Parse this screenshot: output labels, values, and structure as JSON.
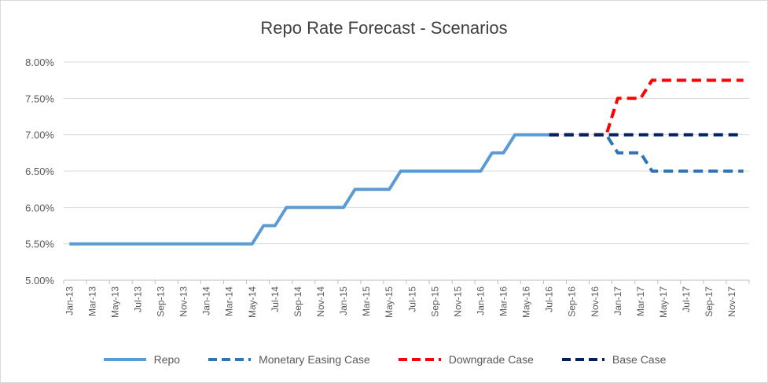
{
  "chart_data": {
    "type": "line",
    "title": "Repo Rate Forecast - Scenarios",
    "xlabel": "",
    "ylabel": "",
    "ylim": [
      0.05,
      0.08
    ],
    "y_ticks": [
      "5.00%",
      "5.50%",
      "6.00%",
      "6.50%",
      "7.00%",
      "7.50%",
      "8.00%"
    ],
    "grid": true,
    "legend_position": "bottom",
    "x_tick_labels": [
      "Jan-13",
      "Mar-13",
      "May-13",
      "Jul-13",
      "Sep-13",
      "Nov-13",
      "Jan-14",
      "Mar-14",
      "May-14",
      "Jul-14",
      "Sep-14",
      "Nov-14",
      "Jan-15",
      "Mar-15",
      "May-15",
      "Jul-15",
      "Sep-15",
      "Nov-15",
      "Jan-16",
      "Mar-16",
      "May-16",
      "Jul-16",
      "Sep-16",
      "Nov-16",
      "Jan-17",
      "Mar-17",
      "May-17",
      "Jul-17",
      "Sep-17",
      "Nov-17"
    ],
    "x": [
      "Jan-13",
      "Feb-13",
      "Mar-13",
      "Apr-13",
      "May-13",
      "Jun-13",
      "Jul-13",
      "Aug-13",
      "Sep-13",
      "Oct-13",
      "Nov-13",
      "Dec-13",
      "Jan-14",
      "Feb-14",
      "Mar-14",
      "Apr-14",
      "May-14",
      "Jun-14",
      "Jul-14",
      "Aug-14",
      "Sep-14",
      "Oct-14",
      "Nov-14",
      "Dec-14",
      "Jan-15",
      "Feb-15",
      "Mar-15",
      "Apr-15",
      "May-15",
      "Jun-15",
      "Jul-15",
      "Aug-15",
      "Sep-15",
      "Oct-15",
      "Nov-15",
      "Dec-15",
      "Jan-16",
      "Feb-16",
      "Mar-16",
      "Apr-16",
      "May-16",
      "Jun-16",
      "Jul-16",
      "Aug-16",
      "Sep-16",
      "Oct-16",
      "Nov-16",
      "Dec-16",
      "Jan-17",
      "Feb-17",
      "Mar-17",
      "Apr-17",
      "May-17",
      "Jun-17",
      "Jul-17",
      "Aug-17",
      "Sep-17",
      "Oct-17",
      "Nov-17",
      "Dec-17"
    ],
    "series": [
      {
        "name": "Repo",
        "color": "#5b9bd5",
        "dash": "solid",
        "values": [
          0.055,
          0.055,
          0.055,
          0.055,
          0.055,
          0.055,
          0.055,
          0.055,
          0.055,
          0.055,
          0.055,
          0.055,
          0.055,
          0.055,
          0.055,
          0.055,
          0.055,
          0.0575,
          0.0575,
          0.06,
          0.06,
          0.06,
          0.06,
          0.06,
          0.06,
          0.0625,
          0.0625,
          0.0625,
          0.0625,
          0.065,
          0.065,
          0.065,
          0.065,
          0.065,
          0.065,
          0.065,
          0.065,
          0.0675,
          0.0675,
          0.07,
          0.07,
          0.07,
          0.07,
          null,
          null,
          null,
          null,
          null,
          null,
          null,
          null,
          null,
          null,
          null,
          null,
          null,
          null,
          null,
          null,
          null
        ]
      },
      {
        "name": "Monetary Easing Case",
        "color": "#2e75b6",
        "dash": "dashed",
        "values": [
          null,
          null,
          null,
          null,
          null,
          null,
          null,
          null,
          null,
          null,
          null,
          null,
          null,
          null,
          null,
          null,
          null,
          null,
          null,
          null,
          null,
          null,
          null,
          null,
          null,
          null,
          null,
          null,
          null,
          null,
          null,
          null,
          null,
          null,
          null,
          null,
          null,
          null,
          null,
          null,
          null,
          null,
          0.07,
          0.07,
          0.07,
          0.07,
          0.07,
          0.07,
          0.0675,
          0.0675,
          0.0675,
          0.065,
          0.065,
          0.065,
          0.065,
          0.065,
          0.065,
          0.065,
          0.065,
          0.065
        ]
      },
      {
        "name": "Downgrade Case",
        "color": "#ff0000",
        "dash": "dashed",
        "values": [
          null,
          null,
          null,
          null,
          null,
          null,
          null,
          null,
          null,
          null,
          null,
          null,
          null,
          null,
          null,
          null,
          null,
          null,
          null,
          null,
          null,
          null,
          null,
          null,
          null,
          null,
          null,
          null,
          null,
          null,
          null,
          null,
          null,
          null,
          null,
          null,
          null,
          null,
          null,
          null,
          null,
          null,
          0.07,
          0.07,
          0.07,
          0.07,
          0.07,
          0.07,
          0.075,
          0.075,
          0.075,
          0.0775,
          0.0775,
          0.0775,
          0.0775,
          0.0775,
          0.0775,
          0.0775,
          0.0775,
          0.0775
        ]
      },
      {
        "name": "Base Case",
        "color": "#002060",
        "dash": "dashed",
        "values": [
          null,
          null,
          null,
          null,
          null,
          null,
          null,
          null,
          null,
          null,
          null,
          null,
          null,
          null,
          null,
          null,
          null,
          null,
          null,
          null,
          null,
          null,
          null,
          null,
          null,
          null,
          null,
          null,
          null,
          null,
          null,
          null,
          null,
          null,
          null,
          null,
          null,
          null,
          null,
          null,
          null,
          null,
          0.07,
          0.07,
          0.07,
          0.07,
          0.07,
          0.07,
          0.07,
          0.07,
          0.07,
          0.07,
          0.07,
          0.07,
          0.07,
          0.07,
          0.07,
          0.07,
          0.07,
          0.07
        ]
      }
    ]
  }
}
